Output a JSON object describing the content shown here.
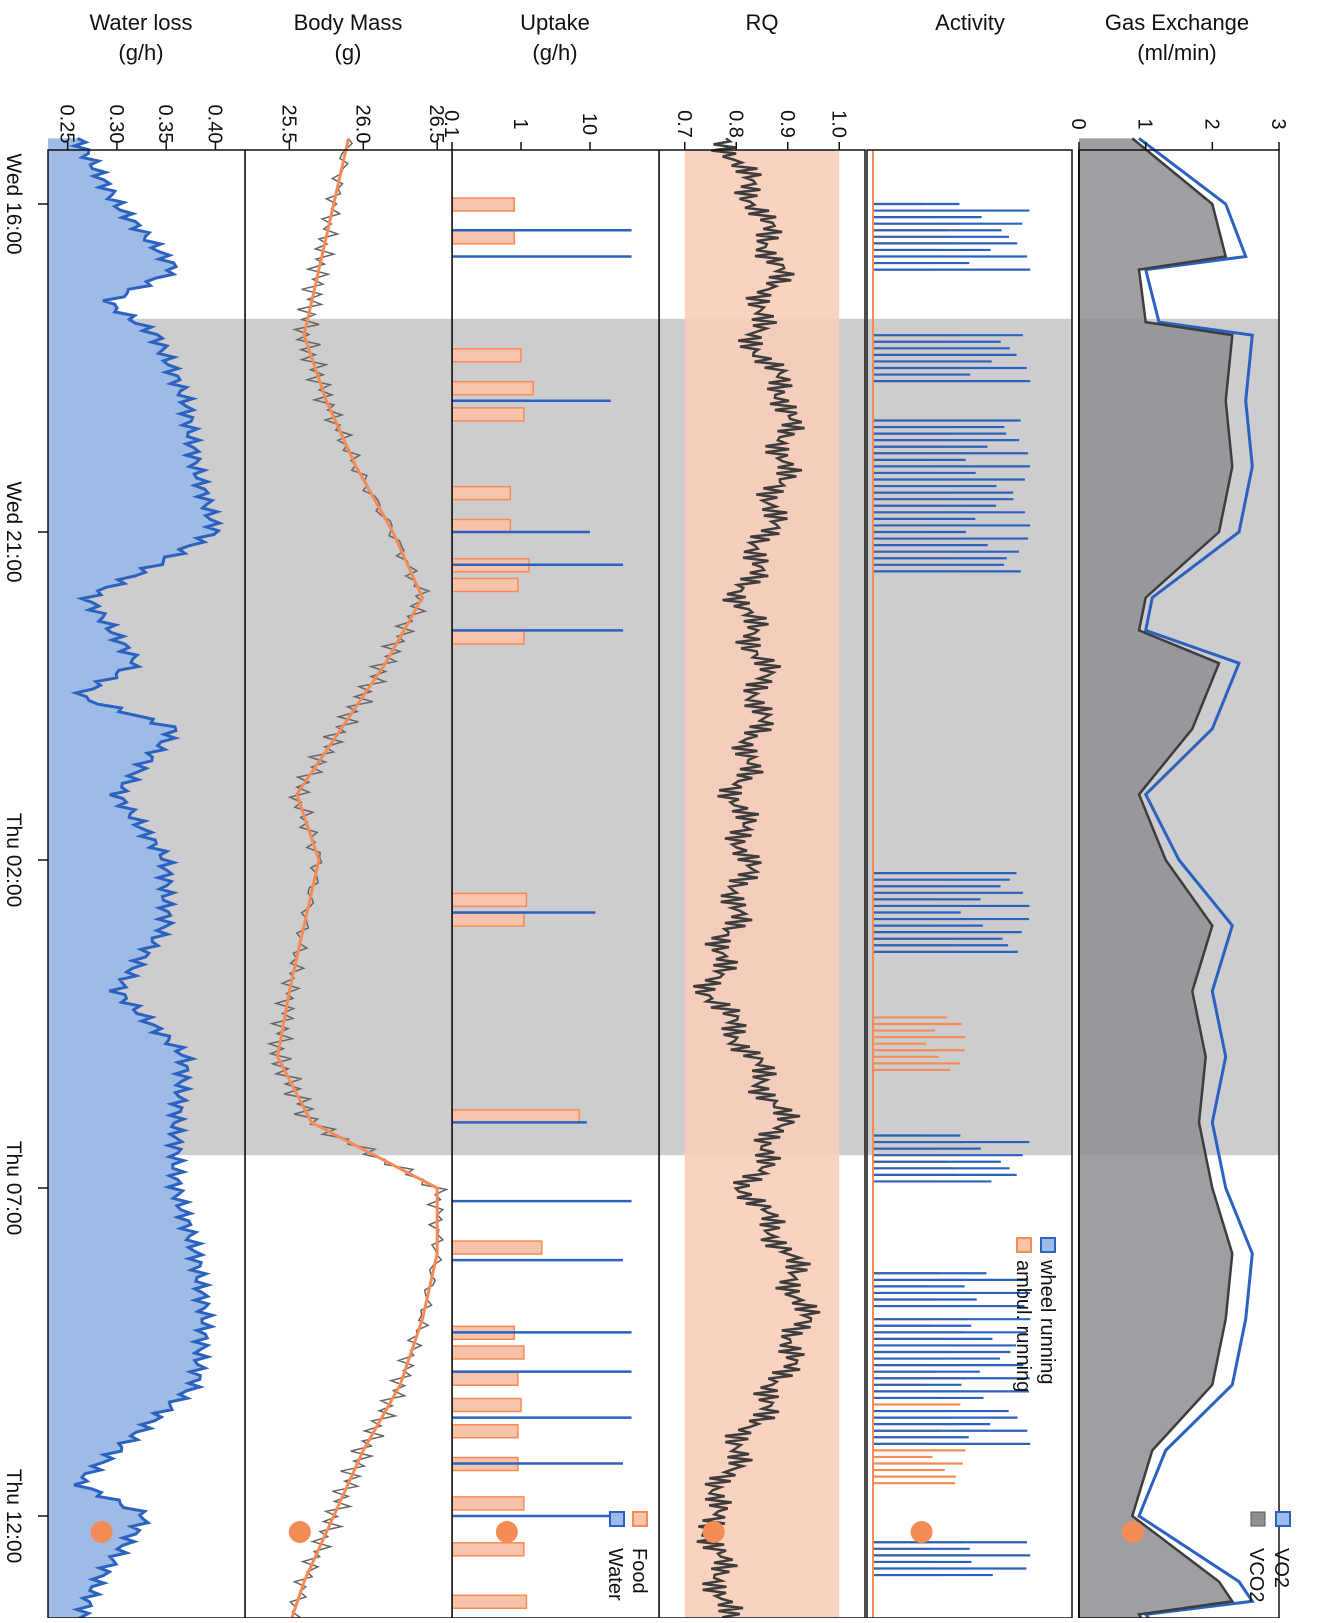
{
  "figure": {
    "panels": [
      {
        "title_line1": "Gas Exchange",
        "title_line2": "(ml/min)"
      },
      {
        "title_line1": "Activity",
        "title_line2": ""
      },
      {
        "title_line1": "RQ",
        "title_line2": ""
      },
      {
        "title_line1": "Uptake",
        "title_line2": "(g/h)"
      },
      {
        "title_line1": "Body Mass",
        "title_line2": "(g)"
      },
      {
        "title_line1": "Water loss",
        "title_line2": "(g/h)"
      }
    ],
    "time_ticks": [
      "Wed 16:00",
      "Wed 21:00",
      "Thu 02:00",
      "Thu 07:00",
      "Thu 12:00"
    ],
    "legends": {
      "gas": [
        "VO2",
        "VCO2"
      ],
      "activity": [
        "wheel running",
        "ambul. running"
      ],
      "uptake": [
        "Food",
        "Water"
      ]
    },
    "colors": {
      "blue": "#2b62c0",
      "blue_fill": "#9dbbe6",
      "orange": "#f58b55",
      "orange_fill": "#f7c3aa",
      "dark": "#3d3d3d",
      "gray_fill": "#8e8e93",
      "night": "#cdcdd0",
      "rq_band": "#f8cdb9"
    }
  },
  "chart_data": [
    {
      "type": "area",
      "title": "Gas Exchange",
      "ylabel": "(ml/min)",
      "ylim": [
        0,
        3
      ],
      "yticks": [
        "0",
        "1",
        "2",
        "3"
      ],
      "xlim": [
        "Wed 15:00",
        "Thu 12:45"
      ],
      "night_span": [
        "Wed 17:45",
        "Thu 06:30"
      ],
      "series": [
        {
          "name": "VO2",
          "x_hours": [
            -1,
            0,
            0.8,
            1,
            1.8,
            2,
            3,
            4,
            4.5,
            5,
            6,
            6.5,
            7,
            8,
            9,
            10,
            11,
            12,
            13,
            14,
            15,
            16,
            17,
            18,
            19,
            20,
            21,
            21.3,
            21.5,
            22
          ],
          "values": [
            0.9,
            2.2,
            2.5,
            1.0,
            1.2,
            2.6,
            2.5,
            2.6,
            2.5,
            2.4,
            1.1,
            1.0,
            2.4,
            2.0,
            1.0,
            1.5,
            2.3,
            2.0,
            2.2,
            2.0,
            2.2,
            2.6,
            2.5,
            2.3,
            1.3,
            0.9,
            2.4,
            2.6,
            1.0,
            1.4
          ]
        },
        {
          "name": "VCO2",
          "x_hours": [
            -1,
            0,
            0.8,
            1,
            1.8,
            2,
            3,
            4,
            4.5,
            5,
            6,
            6.5,
            7,
            8,
            9,
            10,
            11,
            12,
            13,
            14,
            15,
            16,
            17,
            18,
            19,
            20,
            21,
            21.3,
            21.5,
            22
          ],
          "values": [
            0.8,
            2.0,
            2.2,
            0.9,
            1.0,
            2.3,
            2.2,
            2.3,
            2.2,
            2.1,
            1.0,
            0.9,
            2.1,
            1.7,
            0.9,
            1.3,
            2.0,
            1.7,
            1.9,
            1.8,
            2.0,
            2.3,
            2.2,
            2.0,
            1.1,
            0.8,
            2.1,
            2.3,
            0.9,
            1.2
          ]
        }
      ]
    },
    {
      "type": "bar",
      "title": "Activity",
      "xlim": [
        "Wed 15:00",
        "Thu 12:45"
      ],
      "night_span": [
        "Wed 17:45",
        "Thu 06:30"
      ],
      "series": [
        {
          "name": "wheel running",
          "bouts_hours": [
            [
              0,
              1.1
            ],
            [
              2.0,
              2.8
            ],
            [
              3.3,
              5.7
            ],
            [
              10.2,
              11.5
            ],
            [
              14.2,
              15.0
            ],
            [
              16.3,
              16.9
            ],
            [
              17.0,
              18.3
            ],
            [
              18.4,
              19.0
            ],
            [
              20.4,
              21.0
            ]
          ],
          "relative_level": 0.85
        },
        {
          "name": "ambul. running",
          "bouts_hours": [
            [
              0,
              1.1
            ],
            [
              2.0,
              2.8
            ],
            [
              3.3,
              5.7
            ],
            [
              10.2,
              11.5
            ],
            [
              12.4,
              13.3
            ],
            [
              14.2,
              15.0
            ],
            [
              16.3,
              16.9
            ],
            [
              17.0,
              19.6
            ],
            [
              20.4,
              21.0
            ]
          ],
          "relative_level": 0.5
        }
      ]
    },
    {
      "type": "line",
      "title": "RQ",
      "ylim": [
        0.65,
        1.05
      ],
      "yticks": [
        "0.7",
        "0.8",
        "0.9",
        "1.0"
      ],
      "shaded_band": [
        0.7,
        1.0
      ],
      "xlim": [
        "Wed 15:00",
        "Thu 12:45"
      ],
      "night_span": [
        "Wed 17:45",
        "Thu 06:30"
      ],
      "series": [
        {
          "name": "",
          "x_hours": [
            -1,
            0,
            1,
            2,
            3,
            4,
            5,
            6,
            7,
            8,
            9,
            10,
            11,
            12,
            13,
            14,
            15,
            16,
            17,
            18,
            19,
            20,
            21,
            22
          ],
          "values": [
            0.78,
            0.84,
            0.88,
            0.83,
            0.9,
            0.89,
            0.86,
            0.81,
            0.85,
            0.84,
            0.8,
            0.82,
            0.79,
            0.75,
            0.83,
            0.89,
            0.82,
            0.9,
            0.93,
            0.88,
            0.8,
            0.75,
            0.77,
            0.78
          ]
        }
      ]
    },
    {
      "type": "bar",
      "title": "Uptake",
      "ylabel": "(g/h)",
      "ylim": [
        0.1,
        100
      ],
      "log_scale": true,
      "yticks": [
        "0.1",
        "1",
        "10"
      ],
      "xlim": [
        "Wed 15:00",
        "Thu 12:45"
      ],
      "night_span": [
        "Wed 17:45",
        "Thu 06:30"
      ],
      "series": [
        {
          "name": "Food",
          "x_hours": [
            0,
            0.5,
            2.3,
            2.8,
            3.2,
            4.4,
            4.9,
            5.5,
            5.8,
            6.6,
            10.6,
            10.9,
            13.9,
            15.9,
            17.2,
            17.5,
            17.9,
            18.3,
            18.7,
            19.2,
            19.8,
            20.5,
            21.3,
            21.8
          ],
          "values": [
            0.8,
            0.8,
            1.0,
            1.5,
            1.1,
            0.7,
            0.7,
            1.3,
            0.9,
            1.1,
            1.2,
            1.1,
            7.0,
            2.0,
            0.8,
            1.1,
            0.9,
            1.0,
            0.9,
            0.9,
            1.1,
            1.1,
            1.2,
            0.7
          ]
        },
        {
          "name": "Water",
          "x_hours": [
            0.4,
            0.8,
            3.0,
            5.0,
            5.5,
            6.5,
            10.8,
            14.0,
            15.2,
            16.1,
            17.2,
            17.8,
            18.5,
            19.2,
            20.0,
            21.8
          ],
          "values": [
            40,
            40,
            20,
            10,
            30,
            30,
            12,
            9,
            40,
            30,
            40,
            40,
            40,
            30,
            25,
            18
          ]
        }
      ]
    },
    {
      "type": "line",
      "title": "Body Mass",
      "ylabel": "(g)",
      "ylim": [
        25.2,
        26.6
      ],
      "yticks": [
        "25.5",
        "26.0",
        "26.5"
      ],
      "xlim": [
        "Wed 15:00",
        "Thu 12:45"
      ],
      "night_span": [
        "Wed 17:45",
        "Thu 06:30"
      ],
      "series": [
        {
          "name": "",
          "x_hours": [
            -1,
            0,
            1,
            2,
            3,
            4,
            5,
            6,
            7,
            8,
            9,
            10,
            11,
            12,
            13,
            14,
            15,
            16,
            17,
            18,
            19,
            20,
            21,
            22
          ],
          "values": [
            25.9,
            25.8,
            25.7,
            25.6,
            25.75,
            25.95,
            26.2,
            26.4,
            26.15,
            25.85,
            25.55,
            25.7,
            25.6,
            25.5,
            25.42,
            25.65,
            26.5,
            26.5,
            26.4,
            26.25,
            26.0,
            25.8,
            25.6,
            25.45
          ]
        }
      ]
    },
    {
      "type": "area",
      "title": "Water loss",
      "ylabel": "(g/h)",
      "ylim": [
        0.23,
        0.43
      ],
      "yticks": [
        "0.25",
        "0.30",
        "0.35",
        "0.40"
      ],
      "xlim": [
        "Wed 15:00",
        "Thu 12:45"
      ],
      "night_span": [
        "Wed 17:45",
        "Thu 06:30"
      ],
      "series": [
        {
          "name": "",
          "x_hours": [
            -1,
            0,
            1,
            1.5,
            2,
            3,
            4,
            5,
            5.5,
            6,
            7,
            7.5,
            8,
            9,
            10,
            11,
            12,
            13,
            14,
            15,
            16,
            17,
            18,
            19,
            19.5,
            20,
            21,
            22
          ],
          "values": [
            0.26,
            0.3,
            0.36,
            0.29,
            0.34,
            0.37,
            0.38,
            0.4,
            0.34,
            0.27,
            0.32,
            0.26,
            0.36,
            0.3,
            0.35,
            0.35,
            0.3,
            0.37,
            0.36,
            0.36,
            0.38,
            0.39,
            0.38,
            0.3,
            0.26,
            0.33,
            0.28,
            0.25
          ]
        }
      ]
    }
  ]
}
